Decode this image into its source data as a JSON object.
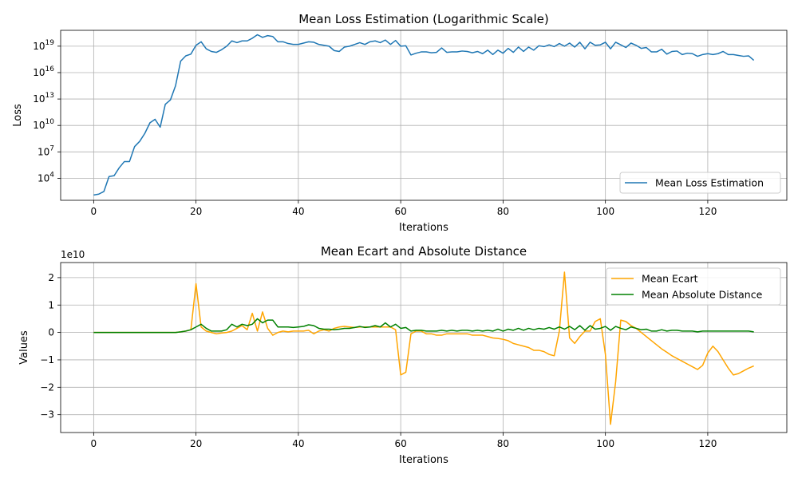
{
  "chart_data": [
    {
      "type": "line",
      "title": "Mean Loss Estimation (Logarithmic Scale)",
      "xlabel": "Iterations",
      "ylabel": "Loss",
      "yscale": "log",
      "xlim": [
        -6.45,
        135.45
      ],
      "ylim_log10": [
        1.5,
        20.8
      ],
      "xticks": [
        {
          "value": 0,
          "label": "0"
        },
        {
          "value": 20,
          "label": "20"
        },
        {
          "value": 40,
          "label": "40"
        },
        {
          "value": 60,
          "label": "60"
        },
        {
          "value": 80,
          "label": "80"
        },
        {
          "value": 100,
          "label": "100"
        },
        {
          "value": 120,
          "label": "120"
        }
      ],
      "yticks": [
        {
          "value": 4,
          "base": "10",
          "exp": "4"
        },
        {
          "value": 7,
          "base": "10",
          "exp": "7"
        },
        {
          "value": 10,
          "base": "10",
          "exp": "10"
        },
        {
          "value": 13,
          "base": "10",
          "exp": "13"
        },
        {
          "value": 16,
          "base": "10",
          "exp": "16"
        },
        {
          "value": 19,
          "base": "10",
          "exp": "19"
        }
      ],
      "grid": true,
      "legend": "lower-right",
      "series": [
        {
          "name": "Mean Loss Estimation",
          "color": "#1f77b4",
          "log10_values": [
            2.1,
            2.2,
            2.5,
            4.2,
            4.3,
            5.2,
            5.9,
            5.9,
            7.6,
            8.2,
            9.1,
            10.3,
            10.7,
            9.8,
            12.4,
            12.9,
            14.5,
            17.3,
            17.9,
            18.1,
            19.1,
            19.5,
            18.7,
            18.4,
            18.3,
            18.6,
            19.0,
            19.6,
            19.4,
            19.6,
            19.6,
            19.9,
            20.3,
            20.0,
            20.2,
            20.1,
            19.5,
            19.5,
            19.3,
            19.2,
            19.2,
            19.35,
            19.5,
            19.45,
            19.2,
            19.1,
            19.0,
            18.5,
            18.4,
            18.9,
            19.0,
            19.2,
            19.4,
            19.2,
            19.5,
            19.6,
            19.4,
            19.7,
            19.2,
            19.65,
            19.0,
            19.05,
            18.0,
            18.2,
            18.35,
            18.35,
            18.25,
            18.3,
            18.8,
            18.3,
            18.35,
            18.35,
            18.45,
            18.4,
            18.25,
            18.4,
            18.15,
            18.55,
            18.05,
            18.55,
            18.2,
            18.75,
            18.3,
            18.9,
            18.4,
            18.9,
            18.55,
            19.05,
            18.95,
            19.15,
            18.95,
            19.3,
            19.0,
            19.35,
            18.9,
            19.45,
            18.7,
            19.45,
            19.1,
            19.15,
            19.45,
            18.7,
            19.45,
            19.15,
            18.85,
            19.35,
            19.1,
            18.75,
            18.85,
            18.35,
            18.35,
            18.65,
            18.1,
            18.4,
            18.45,
            18.05,
            18.2,
            18.15,
            17.85,
            18.05,
            18.15,
            18.05,
            18.15,
            18.4,
            18.05,
            18.05,
            17.95,
            17.85,
            17.9,
            17.4
          ]
        }
      ]
    },
    {
      "type": "line",
      "title": "Mean Ecart and Absolute Distance",
      "xlabel": "Iterations",
      "ylabel": "Values",
      "y_offset_label": "1e10",
      "y_units": "1e10",
      "xlim": [
        -6.45,
        135.45
      ],
      "ylim": [
        -3.65,
        2.55
      ],
      "xticks": [
        {
          "value": 0,
          "label": "0"
        },
        {
          "value": 20,
          "label": "20"
        },
        {
          "value": 40,
          "label": "40"
        },
        {
          "value": 60,
          "label": "60"
        },
        {
          "value": 80,
          "label": "80"
        },
        {
          "value": 100,
          "label": "100"
        },
        {
          "value": 120,
          "label": "120"
        }
      ],
      "yticks": [
        {
          "value": 2,
          "label": "2"
        },
        {
          "value": 1,
          "label": "1"
        },
        {
          "value": 0,
          "label": "0"
        },
        {
          "value": -1,
          "label": "−1"
        },
        {
          "value": -2,
          "label": "−2"
        },
        {
          "value": -3,
          "label": "−3"
        }
      ],
      "grid": true,
      "legend": "upper-right",
      "series": [
        {
          "name": "Mean Ecart",
          "color": "#ffa500",
          "values": [
            0,
            0,
            0,
            0,
            0,
            0,
            0,
            0,
            0,
            0,
            0,
            0,
            0,
            0,
            0,
            0,
            0,
            0.02,
            0.05,
            0.1,
            1.78,
            0.2,
            0.05,
            0,
            -0.05,
            -0.02,
            0,
            0.05,
            0.15,
            0.25,
            0.1,
            0.7,
            0.05,
            0.75,
            0.15,
            -0.1,
            0,
            0.05,
            0.02,
            0.05,
            0.05,
            0.05,
            0.08,
            -0.05,
            0.05,
            0.1,
            0.05,
            0.15,
            0.2,
            0.22,
            0.2,
            0.18,
            0.2,
            0.2,
            0.2,
            0.2,
            0.2,
            0.2,
            0.2,
            0.1,
            -1.55,
            -1.45,
            -0.05,
            0.05,
            0.05,
            -0.05,
            -0.05,
            -0.1,
            -0.1,
            -0.05,
            -0.05,
            -0.05,
            -0.05,
            -0.05,
            -0.1,
            -0.1,
            -0.1,
            -0.15,
            -0.2,
            -0.22,
            -0.25,
            -0.3,
            -0.4,
            -0.45,
            -0.5,
            -0.55,
            -0.65,
            -0.65,
            -0.7,
            -0.8,
            -0.85,
            0.05,
            2.2,
            -0.2,
            -0.4,
            -0.15,
            0.05,
            0.05,
            0.4,
            0.5,
            -0.8,
            -3.35,
            -1.8,
            0.45,
            0.4,
            0.25,
            0.15,
            0,
            -0.15,
            -0.3,
            -0.45,
            -0.6,
            -0.72,
            -0.85,
            -0.95,
            -1.05,
            -1.15,
            -1.25,
            -1.35,
            -1.2,
            -0.75,
            -0.5,
            -0.7,
            -1.0,
            -1.3,
            -1.55,
            -1.5,
            -1.4,
            -1.3,
            -1.22
          ]
        },
        {
          "name": "Mean Absolute Distance",
          "color": "#008000",
          "values": [
            0,
            0,
            0,
            0,
            0,
            0,
            0,
            0,
            0,
            0,
            0,
            0,
            0,
            0,
            0,
            0,
            0,
            0.02,
            0.05,
            0.1,
            0.2,
            0.3,
            0.15,
            0.05,
            0.05,
            0.05,
            0.1,
            0.3,
            0.2,
            0.3,
            0.25,
            0.3,
            0.5,
            0.35,
            0.45,
            0.45,
            0.2,
            0.2,
            0.2,
            0.18,
            0.2,
            0.22,
            0.28,
            0.25,
            0.15,
            0.12,
            0.12,
            0.1,
            0.12,
            0.15,
            0.15,
            0.18,
            0.22,
            0.18,
            0.2,
            0.25,
            0.2,
            0.35,
            0.2,
            0.3,
            0.15,
            0.18,
            0.05,
            0.08,
            0.08,
            0.05,
            0.05,
            0.05,
            0.08,
            0.05,
            0.08,
            0.05,
            0.08,
            0.08,
            0.05,
            0.08,
            0.05,
            0.08,
            0.05,
            0.12,
            0.05,
            0.12,
            0.08,
            0.15,
            0.08,
            0.15,
            0.1,
            0.15,
            0.12,
            0.18,
            0.12,
            0.2,
            0.12,
            0.22,
            0.1,
            0.25,
            0.08,
            0.25,
            0.12,
            0.15,
            0.22,
            0.08,
            0.22,
            0.15,
            0.1,
            0.2,
            0.15,
            0.1,
            0.12,
            0.05,
            0.05,
            0.1,
            0.05,
            0.08,
            0.08,
            0.05,
            0.05,
            0.05,
            0.02,
            0.05,
            0.05,
            0.05,
            0.05,
            0.05,
            0.05,
            0.05,
            0.05,
            0.05,
            0.05,
            0.02
          ]
        }
      ]
    }
  ]
}
